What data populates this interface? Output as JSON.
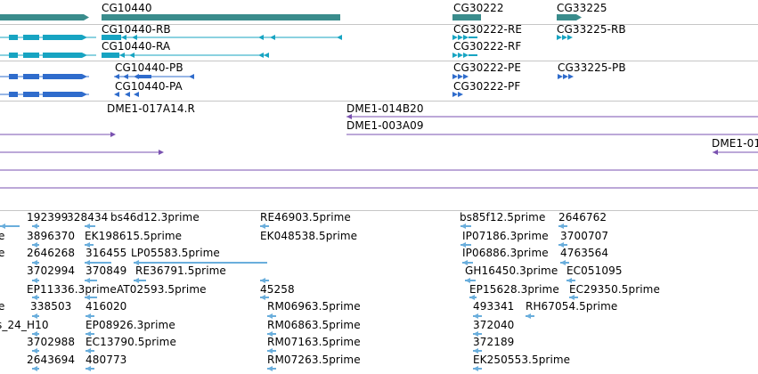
{
  "colors": {
    "gene": "#3a8c8c",
    "transcript_r": "#17a4c2",
    "transcript_p": "#2f6ccc",
    "clone": "#7a52b0",
    "est": "#6aaedc",
    "divider": "#c6c6c6"
  },
  "tracks": {
    "genes": {
      "labels": [
        "CG10440",
        "CG30222",
        "CG33225"
      ]
    },
    "transcripts": {
      "labels": [
        "CG10440-RB",
        "CG10440-RA",
        "CG30222-RE",
        "CG30222-RF",
        "CG33225-RB"
      ]
    },
    "proteins": {
      "labels": [
        "CG10440-PB",
        "CG10440-PA",
        "CG30222-PE",
        "CG30222-PF",
        "CG33225-PB"
      ]
    },
    "clones": {
      "labels": [
        "DME1-017A14.R",
        "DME1-014B20",
        "DME1-003A09",
        "DME1-01"
      ]
    },
    "ests": {
      "labels": [
        "192399",
        "328434",
        "bs46d12.3prime",
        "RE46903.5prime",
        "bs85f12.5prime",
        "2646762",
        "e",
        "3896370",
        "EK198615.5prime",
        "EK048538.5prime",
        "IP07186.3prime",
        "3700707",
        "e",
        "2646268",
        "316455",
        "LP05583.5prime",
        "IP06886.3prime",
        "4763564",
        "3702994",
        "370849",
        "RE36791.5prime",
        "GH16450.3prime",
        "EC051095",
        "EP11336.3prime",
        "AT02593.5prime",
        "45258",
        "EP15628.3prime",
        "EC29350.5prime",
        "e",
        "338503",
        "416020",
        "RM06963.5prime",
        "493341",
        "RH67054.5prime",
        "s_24_H10",
        "EP08926.3prime",
        "RM06863.5prime",
        "372040",
        "3702988",
        "EC13790.5prime",
        "RM07163.5prime",
        "372189",
        "2643694",
        "480773",
        "RM07263.5prime",
        "EK250553.5prime"
      ]
    }
  }
}
